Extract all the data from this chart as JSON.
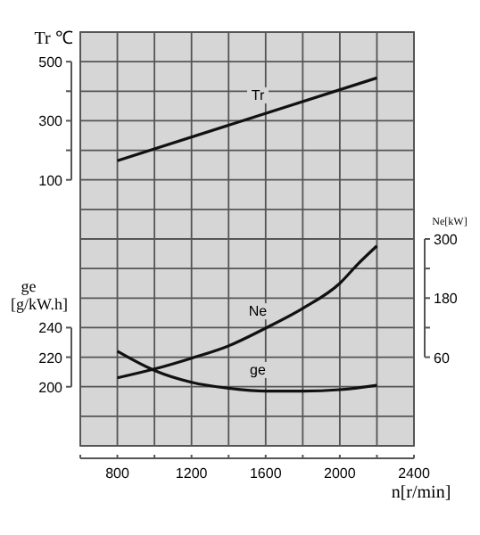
{
  "chart_data": {
    "type": "line",
    "xlabel": "n[r/min]",
    "ylabel": "Tr ℃",
    "y2label": "Ne[kW]",
    "y3label": "ge [g/kW.h]",
    "xlim": [
      600,
      2400
    ],
    "xticks": [
      {
        "value": 600,
        "label": null
      },
      800,
      {
        "value": 1000,
        "label": null
      },
      1200,
      {
        "value": 1400,
        "label": null
      },
      1600,
      {
        "value": 1800,
        "label": null
      },
      2000,
      {
        "value": 2200,
        "label": null
      },
      2400
    ],
    "ylim": [
      -800,
      600
    ],
    "yticks": [
      100,
      {
        "value": 200,
        "label": null
      },
      300,
      {
        "value": 400,
        "label": null
      },
      500
    ],
    "y2lim": [
      -120,
      720
    ],
    "y2ticks": [
      60,
      {
        "value": 120,
        "label": null
      },
      180,
      {
        "value": 240,
        "label": null
      },
      300
    ],
    "y3lim": [
      160,
      440
    ],
    "y3ticks": [
      200,
      220,
      240
    ],
    "grid": true,
    "marker": "none",
    "line_style": "solid",
    "series": [
      {
        "name": "Tr",
        "color": "#111111",
        "axis": "y",
        "x": [
          800,
          2200
        ],
        "values": [
          165,
          445
        ]
      },
      {
        "name": "Ne",
        "color": "#111111",
        "axis": "y2",
        "x": [
          800,
          1000,
          1200,
          1400,
          1600,
          1800,
          2000,
          2100,
          2200
        ],
        "values": [
          18,
          36,
          58,
          83,
          119,
          159,
          210,
          250,
          286
        ]
      },
      {
        "name": "ge",
        "color": "#111111",
        "axis": "y3",
        "x": [
          800,
          1000,
          1200,
          1400,
          1600,
          1800,
          2000,
          2200
        ],
        "values": [
          224,
          211,
          203,
          199,
          197,
          197,
          198,
          201
        ]
      }
    ]
  }
}
